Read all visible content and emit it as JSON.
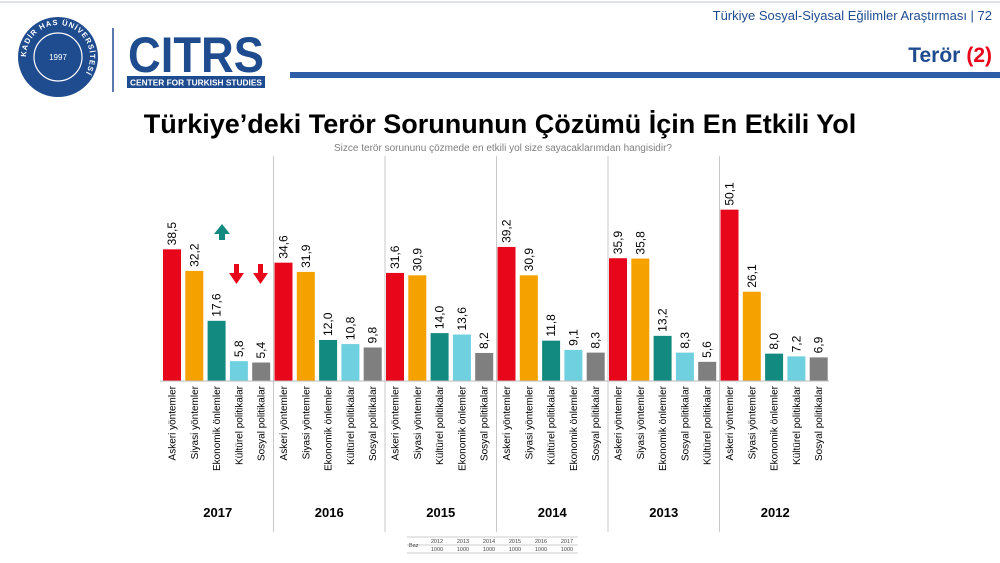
{
  "header": {
    "report": "Türkiye Sosyal-Siyasal Eğilimler Araştırması | 72",
    "section": "Terör",
    "section_number": "(2)",
    "logo_text": "CITRS",
    "logo_subtitle": "CENTER FOR TURKISH STUDIES",
    "seal_text": "KADİR HAS ÜNİVERSİTESİ",
    "seal_year": "1997"
  },
  "chart_data": {
    "type": "bar",
    "title": "Türkiye’deki Terör Sorununun Çözümü İçin En Etkili Yol",
    "subtitle": "Sizce terör sorununu çözmede en etkili yol size sayacaklarımdan hangisidir?",
    "colors": [
      "#e8061b",
      "#f5a100",
      "#138a80",
      "#6fd0df",
      "#7f7f7f"
    ],
    "groups": [
      {
        "name": "2017",
        "categories": [
          "Askeri yöntemler",
          "Siyasi yöntemler",
          "Ekonomik önlemler",
          "Kültürel politikalar",
          "Sosyal politikalar"
        ],
        "values": [
          38.5,
          32.2,
          17.6,
          5.8,
          5.4
        ],
        "value_labels": [
          "38,5",
          "32,2",
          "17,6",
          "5,8",
          "5,4"
        ]
      },
      {
        "name": "2016",
        "categories": [
          "Askeri yöntemler",
          "Siyasi yöntemler",
          "Ekonomik önlemler",
          "Kültürel politikalar",
          "Sosyal politikalar"
        ],
        "values": [
          34.6,
          31.9,
          12.0,
          10.8,
          9.8
        ],
        "value_labels": [
          "34,6",
          "31,9",
          "12,0",
          "10,8",
          "9,8"
        ]
      },
      {
        "name": "2015",
        "categories": [
          "Askeri yöntemler",
          "Siyasi yöntemler",
          "Kültürel politikalar",
          "Ekonomik önlemler",
          "Sosyal politikalar"
        ],
        "values": [
          31.6,
          30.9,
          14.0,
          13.6,
          8.2
        ],
        "value_labels": [
          "31,6",
          "30,9",
          "14,0",
          "13,6",
          "8,2"
        ]
      },
      {
        "name": "2014",
        "categories": [
          "Askeri yöntemler",
          "Siyasi yöntemler",
          "Kültürel politikalar",
          "Ekonomik önlemler",
          "Sosyal politikalar"
        ],
        "values": [
          39.2,
          30.9,
          11.8,
          9.1,
          8.3
        ],
        "value_labels": [
          "39,2",
          "30,9",
          "11,8",
          "9,1",
          "8,3"
        ]
      },
      {
        "name": "2013",
        "categories": [
          "Askeri yöntemler",
          "Siyasi yöntemler",
          "Ekonomik önlemler",
          "Sosyal politikalar",
          "Kültürel politikalar"
        ],
        "values": [
          35.9,
          35.8,
          13.2,
          8.3,
          5.6
        ],
        "value_labels": [
          "35,9",
          "35,8",
          "13,2",
          "8,3",
          "5,6"
        ]
      },
      {
        "name": "2012",
        "categories": [
          "Askeri yöntemler",
          "Siyasi yöntemler",
          "Ekonomik önlemler",
          "Kültürel politikalar",
          "Sosyal politikalar"
        ],
        "values": [
          50.1,
          26.1,
          8.0,
          7.2,
          6.9
        ],
        "value_labels": [
          "50,1",
          "26,1",
          "8,0",
          "7,2",
          "6,9"
        ]
      }
    ]
  },
  "base_table": {
    "label": "Baz",
    "years": [
      "2012",
      "2013",
      "2014",
      "2015",
      "2016",
      "2017"
    ],
    "counts": [
      "1000",
      "1000",
      "1000",
      "1000",
      "1000",
      "1000"
    ]
  }
}
